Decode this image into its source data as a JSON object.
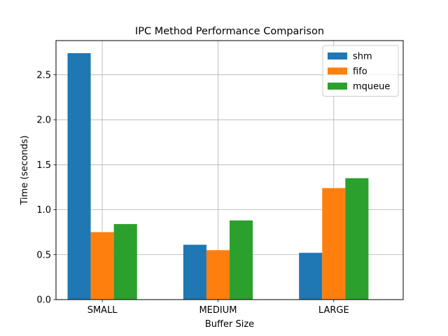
{
  "chart_data": {
    "type": "bar",
    "title": "IPC Method Performance Comparison",
    "xlabel": "Buffer Size",
    "ylabel": "Time (seconds)",
    "categories": [
      "SMALL",
      "MEDIUM",
      "LARGE"
    ],
    "series": [
      {
        "name": "shm",
        "color": "#1f77b4",
        "values": [
          2.74,
          0.61,
          0.52
        ]
      },
      {
        "name": "fifo",
        "color": "#ff7f0e",
        "values": [
          0.75,
          0.55,
          1.24
        ]
      },
      {
        "name": "mqueue",
        "color": "#2ca02c",
        "values": [
          0.84,
          0.88,
          1.35
        ]
      }
    ],
    "ylim": [
      0,
      2.88
    ],
    "yticks": [
      "0.0",
      "0.5",
      "1.0",
      "1.5",
      "2.0",
      "2.5"
    ],
    "grid": true,
    "legend_position": "top-right"
  }
}
